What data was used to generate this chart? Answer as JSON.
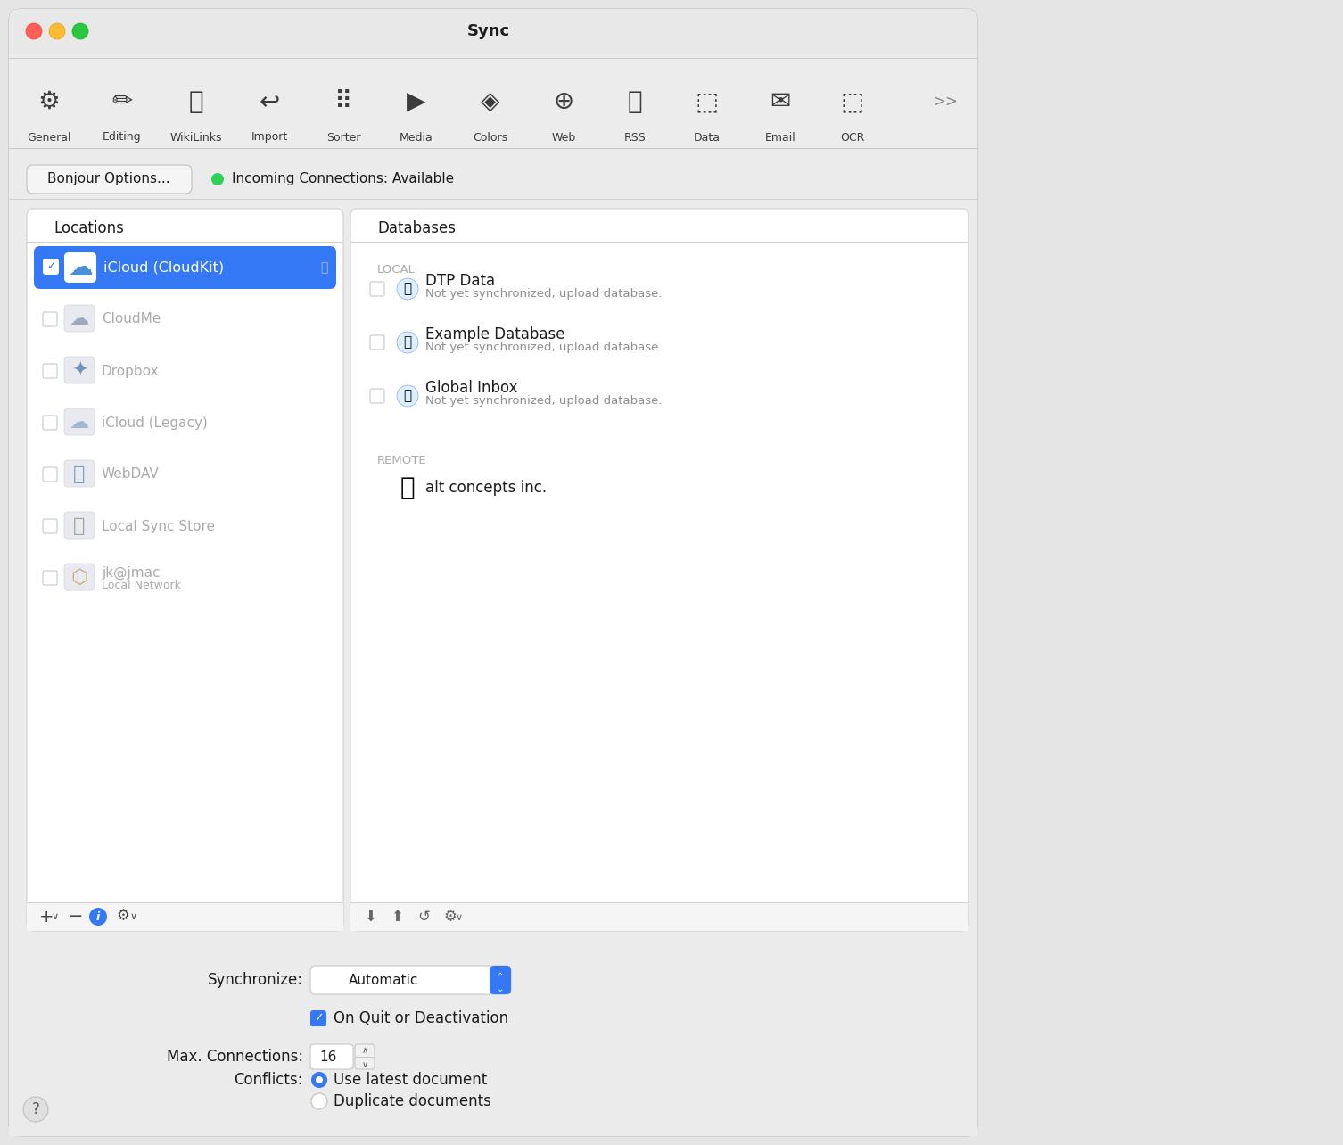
{
  "title": "Sync",
  "bg_color": "#e5e5e5",
  "window_bg": "#f2f2f2",
  "toolbar_bg": "#ececec",
  "toolbar_items": [
    "General",
    "Editing",
    "WikiLinks",
    "Import",
    "Sorter",
    "Media",
    "Colors",
    "Web",
    "RSS",
    "Data",
    "Email",
    "OCR"
  ],
  "bonjour_btn": "Bonjour Options...",
  "incoming_text": "Incoming Connections: Available",
  "locations_title": "Locations",
  "databases_title": "Databases",
  "local_label": "LOCAL",
  "db_items": [
    {
      "name": "DTP Data",
      "sub": "Not yet synchronized, upload database."
    },
    {
      "name": "Example Database",
      "sub": "Not yet synchronized, upload database."
    },
    {
      "name": "Global Inbox",
      "sub": "Not yet synchronized, upload database."
    }
  ],
  "remote_label": "REMOTE",
  "remote_item": "alt concepts inc.",
  "loc_names": [
    "iCloud (CloudKit)",
    "CloudMe",
    "Dropbox",
    "iCloud (Legacy)",
    "WebDAV",
    "Local Sync Store",
    "jk@jmac"
  ],
  "loc_sub": [
    "",
    "",
    "",
    "",
    "",
    "",
    "Local Network"
  ],
  "synchronize_label": "Synchronize:",
  "synchronize_value": "Automatic",
  "on_quit_label": "On Quit or Deactivation",
  "max_conn_label": "Max. Connections:",
  "max_conn_value": "16",
  "conflicts_label": "Conflicts:",
  "conflict_opt1": "Use latest document",
  "conflict_opt2": "Duplicate documents",
  "selected_color": "#3478f6",
  "checkbox_border": "#c0c0c0",
  "text_gray": "#8e8e93",
  "text_dark": "#1c1c1e",
  "text_medium": "#555555",
  "panel_bg": "#ffffff",
  "divider_color": "#d0d0d0",
  "green_dot": "#30d158",
  "toolbar_icon_color": "#3c3c3c"
}
